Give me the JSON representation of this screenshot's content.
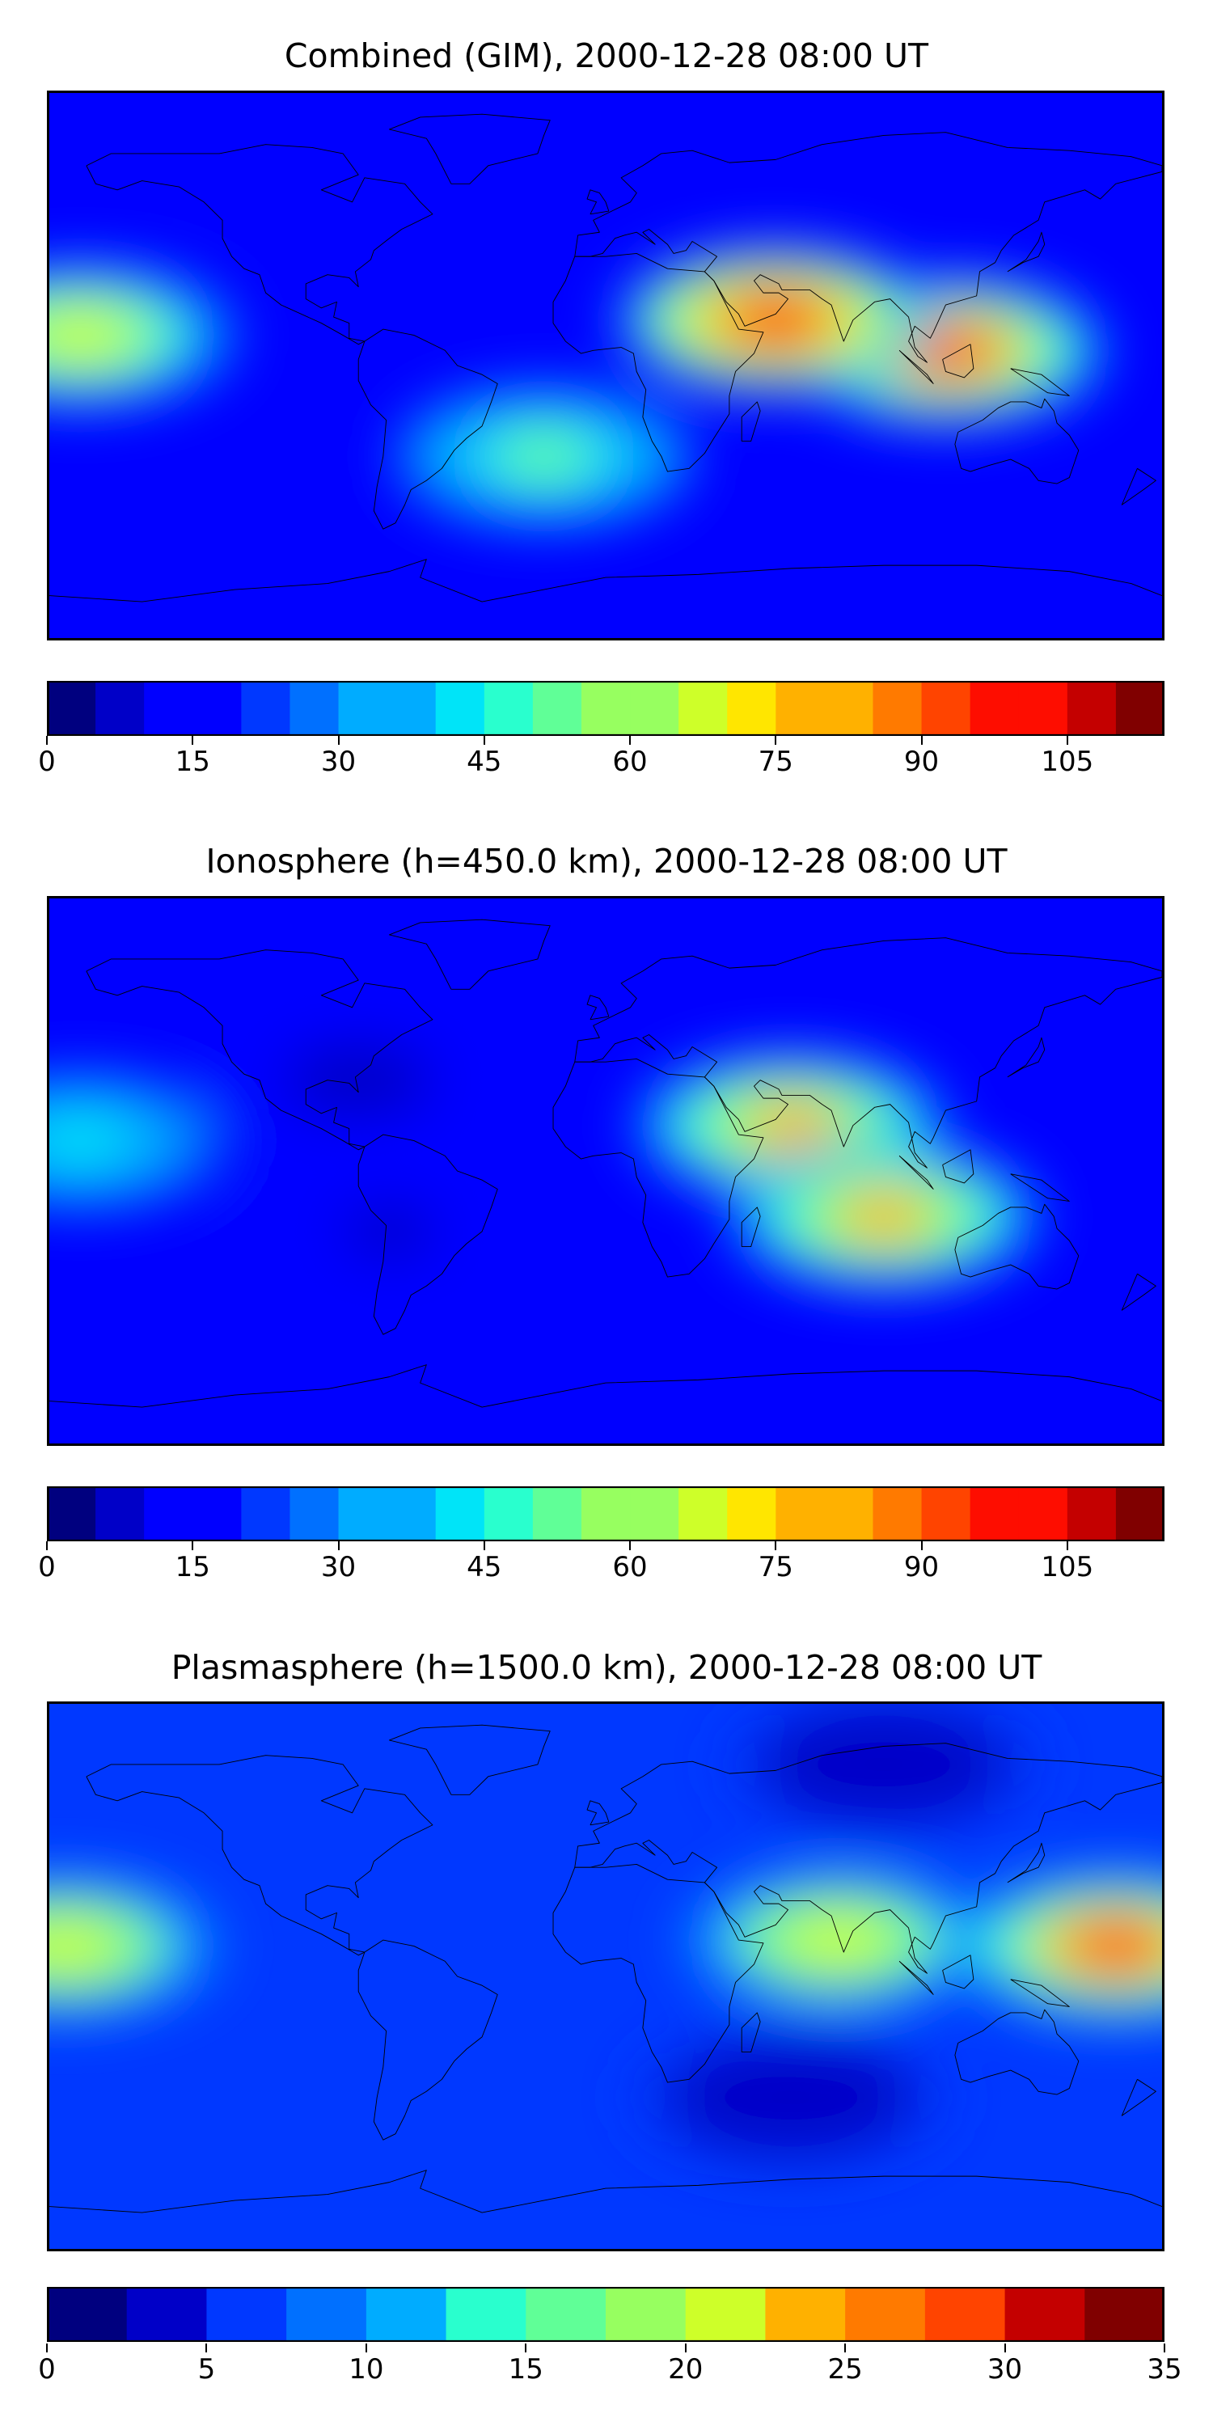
{
  "colormap": [
    "#00007f",
    "#0000c8",
    "#0000ff",
    "#0038ff",
    "#0070ff",
    "#00acff",
    "#00e4f8",
    "#29ffce",
    "#60ff97",
    "#97ff60",
    "#ceff29",
    "#ffe600",
    "#ffb100",
    "#ff7a00",
    "#ff4400",
    "#fe0d00",
    "#c40000",
    "#800000"
  ],
  "chart_data": [
    {
      "type": "heatmap",
      "title": "Combined (GIM), 2000-12-28 08:00 UT",
      "colorbar": {
        "min": 0,
        "max": 115,
        "step": 5,
        "tick_labels": [
          "0",
          "15",
          "30",
          "45",
          "60",
          "75",
          "90",
          "105"
        ],
        "tick_values": [
          0,
          15,
          30,
          45,
          60,
          75,
          90,
          105
        ]
      },
      "features": [
        {
          "name": "Equatorial peak over Arabia and South Asia",
          "lon": 55,
          "lat": 15,
          "value": 100
        },
        {
          "name": "Peak over Southeast Asia",
          "lon": 110,
          "lat": 5,
          "value": 90
        },
        {
          "name": "Central Pacific enhancement",
          "lon": -170,
          "lat": 10,
          "value": 65
        },
        {
          "name": "Southern Atlantic band",
          "lon": -20,
          "lat": -30,
          "value": 50
        },
        {
          "name": "Northern high latitudes low",
          "lon": -90,
          "lat": 75,
          "value": 10
        }
      ]
    },
    {
      "type": "heatmap",
      "title": "Ionosphere  (h=450.0 km), 2000-12-28 08:00 UT",
      "colorbar": {
        "min": 0,
        "max": 115,
        "step": 5,
        "tick_labels": [
          "0",
          "15",
          "30",
          "45",
          "60",
          "75",
          "90",
          "105"
        ],
        "tick_values": [
          0,
          15,
          30,
          45,
          60,
          75,
          90,
          105
        ]
      },
      "features": [
        {
          "name": "Equatorial peak over Arabia and India",
          "lon": 60,
          "lat": 15,
          "value": 75
        },
        {
          "name": "Southern Indian Ocean crest",
          "lon": 90,
          "lat": -15,
          "value": 75
        },
        {
          "name": "Central Pacific enhancement",
          "lon": -170,
          "lat": 10,
          "value": 40
        },
        {
          "name": "Americas night-side low",
          "lon": -80,
          "lat": 30,
          "value": 5
        },
        {
          "name": "South America trough",
          "lon": -70,
          "lat": -20,
          "value": 8
        }
      ]
    },
    {
      "type": "heatmap",
      "title": "Plasmasphere (h=1500.0 km), 2000-12-28 08:00 UT",
      "colorbar": {
        "min": 0,
        "max": 35,
        "step": 2.5,
        "tick_labels": [
          "0",
          "5",
          "10",
          "15",
          "20",
          "25",
          "30",
          "35"
        ],
        "tick_values": [
          0,
          5,
          10,
          15,
          20,
          25,
          30,
          35
        ]
      },
      "features": [
        {
          "name": "Western Pacific maximum",
          "lon": 165,
          "lat": 10,
          "value": 28
        },
        {
          "name": "Eastern Pacific crest",
          "lon": -175,
          "lat": 10,
          "value": 21
        },
        {
          "name": "Arabia to East Asia crest",
          "lon": 75,
          "lat": 12,
          "value": 21
        },
        {
          "name": "Southern mid-latitude trough",
          "lon": 60,
          "lat": -40,
          "value": 3
        },
        {
          "name": "Northern Asia low",
          "lon": 90,
          "lat": 70,
          "value": 3
        }
      ]
    }
  ]
}
